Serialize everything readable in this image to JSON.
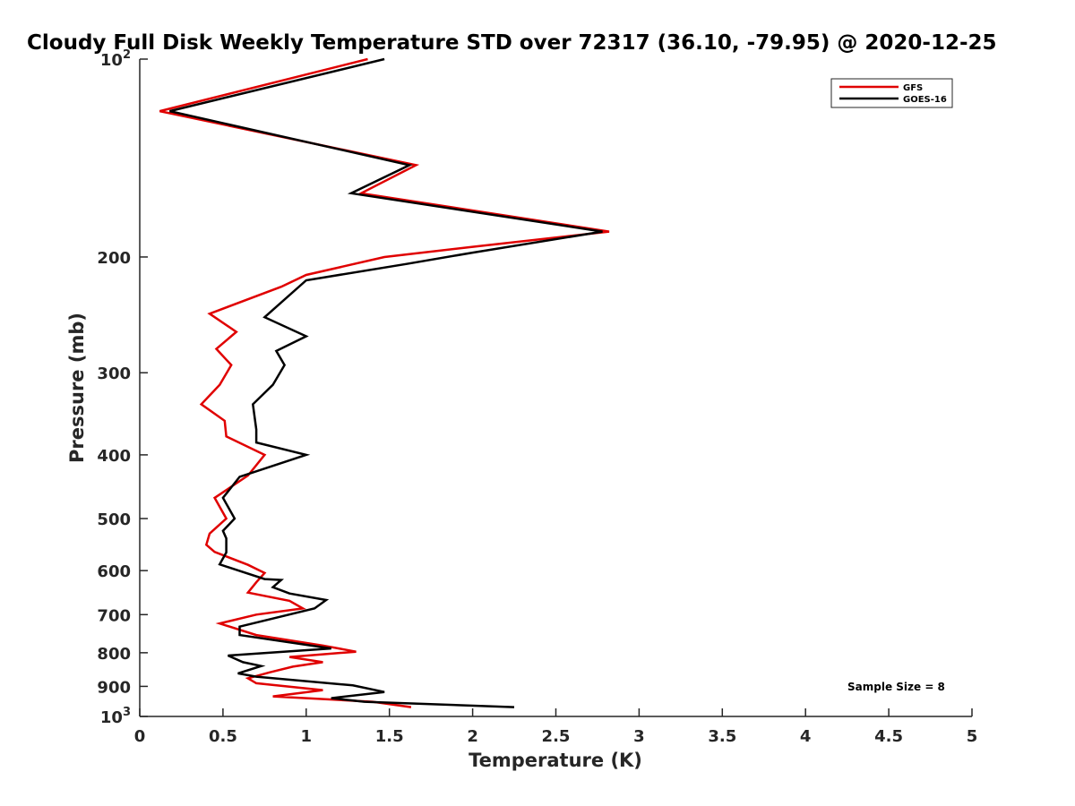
{
  "chart_data": {
    "type": "line",
    "title": "Cloudy Full Disk Weekly Temperature STD over 72317 (36.10, -79.95) @ 2020-12-25",
    "xlabel": "Temperature (K)",
    "ylabel": "Pressure (mb)",
    "xlim": [
      0,
      5
    ],
    "ylim": [
      1000,
      100
    ],
    "yscale": "log",
    "y_reversed": true,
    "grid": false,
    "legend_position": "top-right",
    "x_ticks": [
      "0",
      "0.5",
      "1",
      "1.5",
      "2",
      "2.5",
      "3",
      "3.5",
      "4",
      "4.5",
      "5"
    ],
    "y_ticks": [
      {
        "value": 100,
        "base": "10",
        "exp": "2"
      },
      {
        "value": 200,
        "label": "200"
      },
      {
        "value": 300,
        "label": "300"
      },
      {
        "value": 400,
        "label": "400"
      },
      {
        "value": 500,
        "label": "500"
      },
      {
        "value": 600,
        "label": "600"
      },
      {
        "value": 700,
        "label": "700"
      },
      {
        "value": 800,
        "label": "800"
      },
      {
        "value": 900,
        "label": "900"
      },
      {
        "value": 1000,
        "base": "10",
        "exp": "3"
      }
    ],
    "series": [
      {
        "name": "GFS",
        "color": "#e00000",
        "points": [
          [
            1.37,
            100
          ],
          [
            0.12,
            120
          ],
          [
            1.66,
            145
          ],
          [
            1.33,
            160
          ],
          [
            2.82,
            183
          ],
          [
            2.0,
            193
          ],
          [
            1.47,
            200
          ],
          [
            1.0,
            213
          ],
          [
            0.85,
            222
          ],
          [
            0.42,
            244
          ],
          [
            0.58,
            260
          ],
          [
            0.46,
            276
          ],
          [
            0.55,
            292
          ],
          [
            0.48,
            313
          ],
          [
            0.37,
            335
          ],
          [
            0.51,
            355
          ],
          [
            0.52,
            375
          ],
          [
            0.75,
            400
          ],
          [
            0.65,
            430
          ],
          [
            0.45,
            465
          ],
          [
            0.52,
            500
          ],
          [
            0.42,
            527
          ],
          [
            0.4,
            548
          ],
          [
            0.45,
            562
          ],
          [
            0.65,
            588
          ],
          [
            0.75,
            605
          ],
          [
            0.7,
            625
          ],
          [
            0.65,
            648
          ],
          [
            0.9,
            667
          ],
          [
            0.98,
            685
          ],
          [
            0.7,
            700
          ],
          [
            0.48,
            722
          ],
          [
            0.7,
            752
          ],
          [
            1.1,
            780
          ],
          [
            1.3,
            797
          ],
          [
            0.9,
            812
          ],
          [
            1.1,
            827
          ],
          [
            0.92,
            840
          ],
          [
            0.78,
            857
          ],
          [
            0.65,
            875
          ],
          [
            0.7,
            890
          ],
          [
            1.1,
            912
          ],
          [
            0.8,
            932
          ],
          [
            1.4,
            950
          ],
          [
            1.63,
            968
          ]
        ]
      },
      {
        "name": "GOES-16",
        "color": "#000000",
        "points": [
          [
            1.47,
            100
          ],
          [
            0.18,
            120
          ],
          [
            1.62,
            145
          ],
          [
            1.27,
            160
          ],
          [
            2.78,
            183
          ],
          [
            2.0,
            197
          ],
          [
            1.6,
            205
          ],
          [
            1.0,
            217
          ],
          [
            0.75,
            247
          ],
          [
            1.0,
            264
          ],
          [
            0.82,
            278
          ],
          [
            0.87,
            292
          ],
          [
            0.8,
            313
          ],
          [
            0.68,
            335
          ],
          [
            0.7,
            366
          ],
          [
            0.7,
            383
          ],
          [
            1.0,
            400
          ],
          [
            0.6,
            432
          ],
          [
            0.5,
            465
          ],
          [
            0.57,
            500
          ],
          [
            0.5,
            522
          ],
          [
            0.52,
            536
          ],
          [
            0.52,
            563
          ],
          [
            0.48,
            587
          ],
          [
            0.75,
            618
          ],
          [
            0.85,
            620
          ],
          [
            0.8,
            636
          ],
          [
            0.9,
            650
          ],
          [
            1.12,
            665
          ],
          [
            1.05,
            685
          ],
          [
            0.6,
            730
          ],
          [
            0.6,
            752
          ],
          [
            1.15,
            788
          ],
          [
            0.53,
            808
          ],
          [
            0.62,
            827
          ],
          [
            0.73,
            838
          ],
          [
            0.59,
            860
          ],
          [
            0.7,
            870
          ],
          [
            1.28,
            897
          ],
          [
            1.47,
            918
          ],
          [
            1.15,
            938
          ],
          [
            1.35,
            950
          ],
          [
            2.25,
            968
          ]
        ]
      }
    ],
    "annotation": "Sample Size = 8"
  }
}
